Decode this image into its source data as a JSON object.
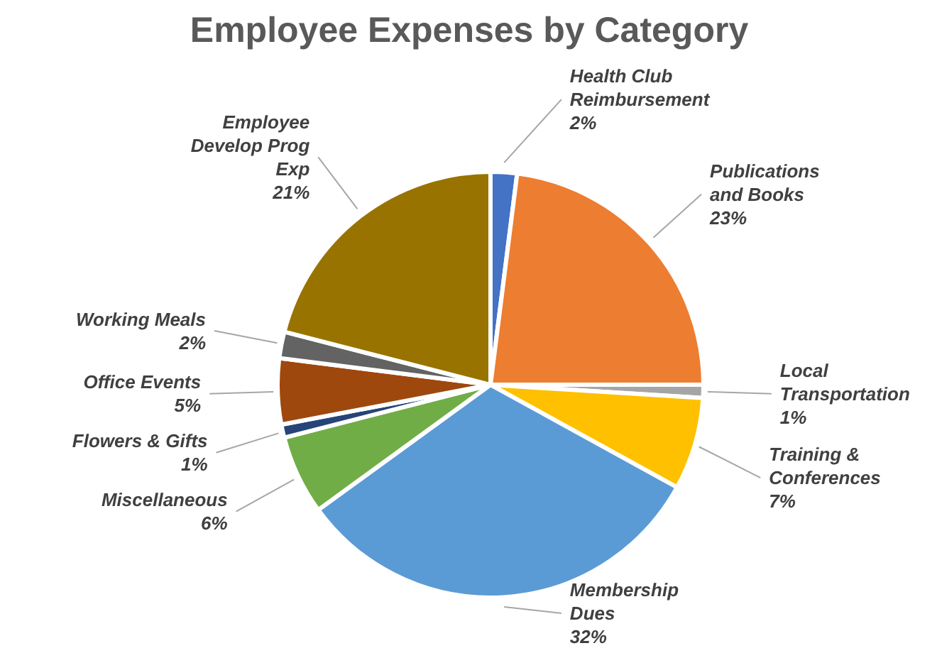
{
  "chart_data": {
    "type": "pie",
    "title": "Employee Expenses by Category",
    "categories": [
      "Health Club\nReimbursement",
      "Publications\nand Books",
      "Local\nTransportation",
      "Training &\nConferences",
      "Membership\nDues",
      "Miscellaneous",
      "Flowers & Gifts",
      "Office Events",
      "Working Meals",
      "Employee\nDevelop Prog\nExp"
    ],
    "values": [
      2,
      23,
      1,
      7,
      32,
      6,
      1,
      5,
      2,
      21
    ],
    "colors": [
      "#4472c4",
      "#ed7d31",
      "#a5a5a5",
      "#ffc000",
      "#5b9bd5",
      "#70ad47",
      "#264478",
      "#9e480e",
      "#636363",
      "#997300"
    ],
    "value_labels": [
      "2%",
      "23%",
      "1%",
      "7%",
      "32%",
      "6%",
      "1%",
      "5%",
      "2%",
      "21%"
    ]
  }
}
